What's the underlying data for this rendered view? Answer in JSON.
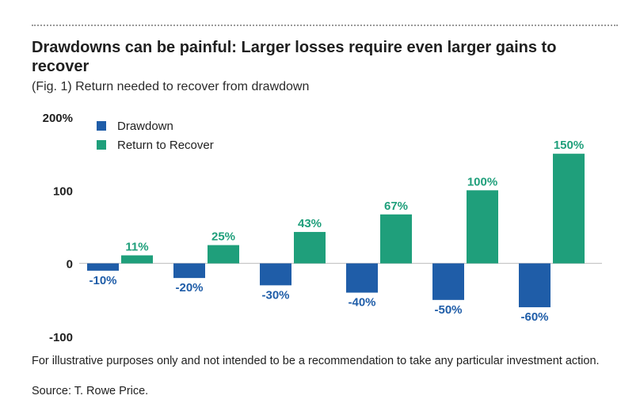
{
  "title": "Drawdowns can be painful: Larger losses require even larger gains to recover",
  "subtitle": "(Fig. 1) Return needed to recover from drawdown",
  "footnote": "For illustrative purposes only and not intended to be a recommendation to take any particular investment action.",
  "source": "Source: T. Rowe Price.",
  "chart_data": {
    "type": "bar",
    "categories": [
      "",
      "",
      "",
      "",
      "",
      ""
    ],
    "series": [
      {
        "name": "Drawdown",
        "color": "#1f5da8",
        "values": [
          -10,
          -20,
          -30,
          -40,
          -50,
          -60
        ],
        "labels": [
          "-10%",
          "-20%",
          "-30%",
          "-40%",
          "-50%",
          "-60%"
        ]
      },
      {
        "name": "Return to Recover",
        "color": "#1f9f7b",
        "values": [
          11,
          25,
          43,
          67,
          100,
          150
        ],
        "labels": [
          "11%",
          "25%",
          "43%",
          "67%",
          "100%",
          "150%"
        ]
      }
    ],
    "ylim": [
      -100,
      200
    ],
    "yticks": [
      200,
      100,
      0,
      -100
    ],
    "ytick_labels": [
      "200%",
      "100",
      "0",
      "-100"
    ],
    "legend_position": "top-left",
    "grid": false
  }
}
